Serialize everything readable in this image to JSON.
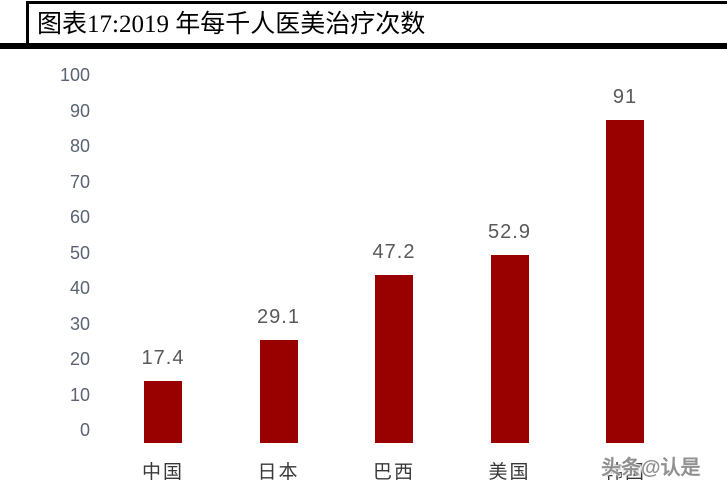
{
  "header": {
    "title": "图表17:2019 年每千人医美治疗次数"
  },
  "chart_data": {
    "type": "bar",
    "title": "图表17:2019 年每千人医美治疗次数",
    "categories": [
      "中国",
      "日本",
      "巴西",
      "美国",
      "韩国"
    ],
    "values": [
      17.4,
      29.1,
      47.2,
      52.9,
      91
    ],
    "value_labels": [
      "17.4",
      "29.1",
      "47.2",
      "52.9",
      "91"
    ],
    "xlabel": "",
    "ylabel": "",
    "ylim": [
      0,
      100
    ],
    "y_ticks": [
      100,
      90,
      80,
      70,
      60,
      50,
      40,
      30,
      20,
      10,
      0
    ],
    "grid": "off",
    "legend": "none",
    "colors": {
      "bar": "#990000",
      "tick_label": "#5a6373",
      "value_label": "#595959",
      "category_label": "#383838",
      "rule": "#000000"
    }
  },
  "watermark": {
    "text": "头条@认是"
  }
}
